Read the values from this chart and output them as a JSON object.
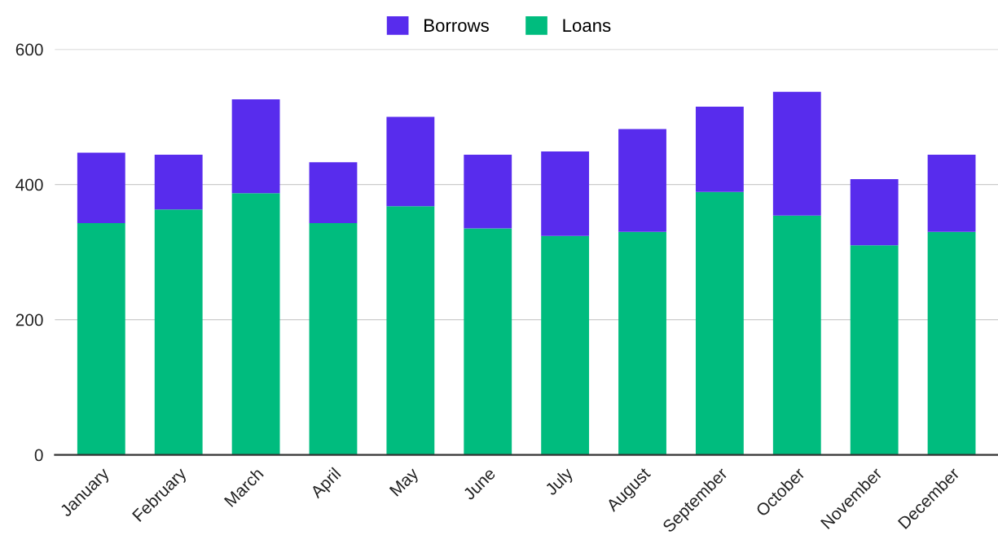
{
  "chart_data": {
    "type": "bar",
    "stacked": true,
    "categories": [
      "January",
      "February",
      "March",
      "April",
      "May",
      "June",
      "July",
      "August",
      "September",
      "October",
      "November",
      "December"
    ],
    "series": [
      {
        "name": "Loans",
        "color": "#00bc7e",
        "values": [
          343,
          363,
          387,
          343,
          368,
          335,
          324,
          330,
          389,
          354,
          310,
          330
        ]
      },
      {
        "name": "Borrows",
        "color": "#582ced",
        "values": [
          104,
          81,
          139,
          90,
          132,
          109,
          125,
          152,
          126,
          183,
          98,
          114
        ]
      }
    ],
    "ylim": [
      0,
      600
    ],
    "yticks": [
      0,
      200,
      400,
      600
    ],
    "grid": "y",
    "legend": "top"
  }
}
